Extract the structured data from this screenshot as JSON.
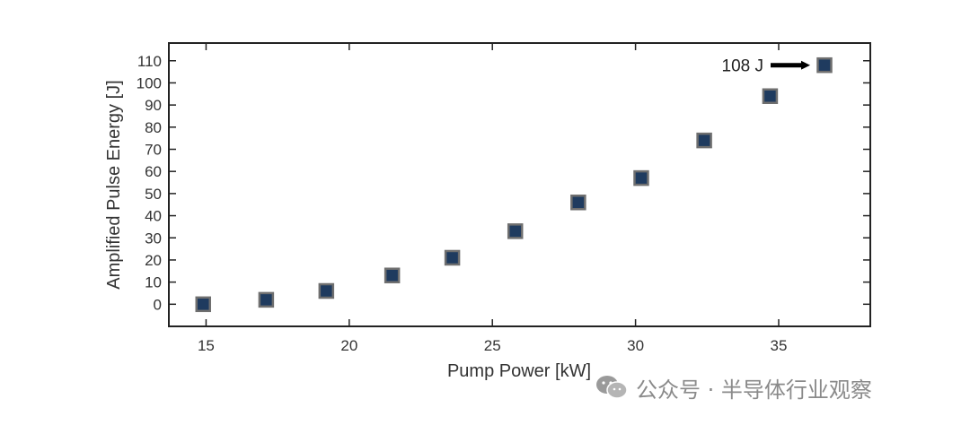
{
  "chart_data": {
    "type": "scatter",
    "xlabel": "Pump Power [kW]",
    "ylabel": "Amplified Pulse Energy [J]",
    "xlim": [
      13.7,
      38.2
    ],
    "ylim": [
      -10,
      118
    ],
    "xticks": [
      15,
      20,
      25,
      30,
      35
    ],
    "yticks": [
      0,
      10,
      20,
      30,
      40,
      50,
      60,
      70,
      80,
      90,
      100,
      110
    ],
    "grid": false,
    "marker": "square",
    "marker_color": "#1f3b5f",
    "series": [
      {
        "x": [
          14.9,
          17.1,
          19.2,
          21.5,
          23.6,
          25.8,
          28.0,
          30.2,
          32.4,
          34.7,
          36.6
        ],
        "y": [
          0,
          2,
          6,
          13,
          21,
          33,
          46,
          57,
          74,
          94,
          108
        ]
      }
    ],
    "annotations": [
      {
        "text": "108 J",
        "x": 36.6,
        "y": 108,
        "arrow": "right"
      }
    ]
  },
  "watermark": {
    "text": "公众号 · 半导体行业观察",
    "icon": "wechat-icon"
  }
}
